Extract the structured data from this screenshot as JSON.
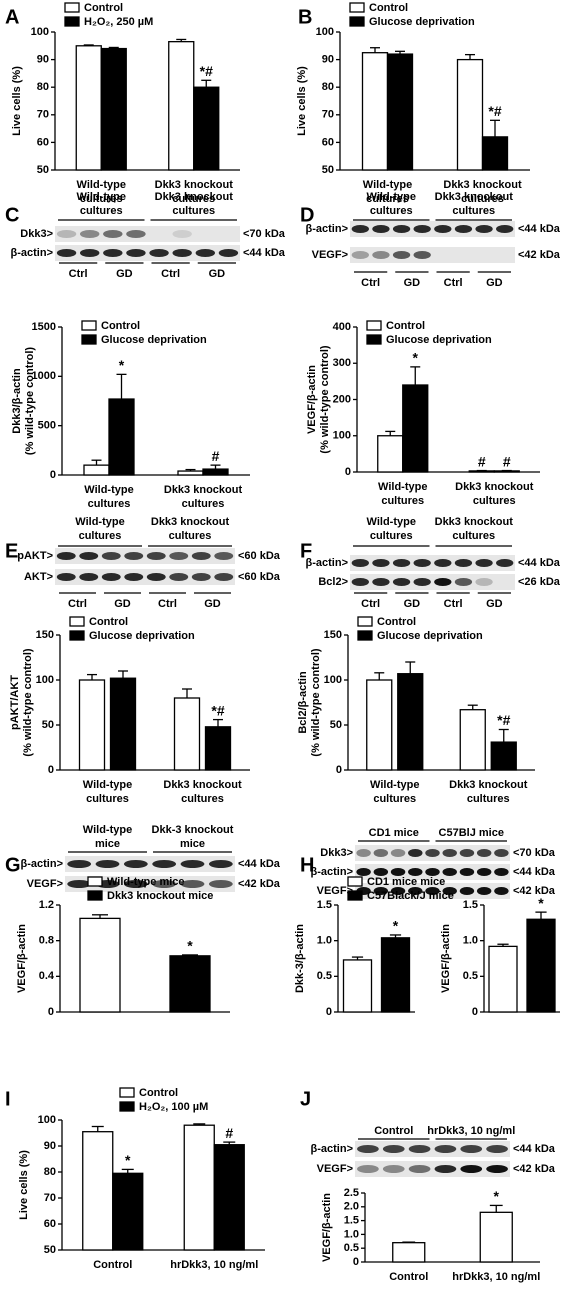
{
  "panels": [
    "A",
    "B",
    "C",
    "D",
    "E",
    "F",
    "G",
    "H",
    "I",
    "J"
  ],
  "blots": [
    {
      "groups": [
        [
          "Wild-type",
          "cultures"
        ],
        [
          "Dkk3 knockout",
          "cultures"
        ]
      ],
      "rows": [
        "Dkk3>",
        "β-actin>"
      ],
      "sizes": [
        "<70 kDa",
        "<44 kDa"
      ],
      "lanes": [
        "Ctrl",
        "GD",
        "Ctrl",
        "GD"
      ]
    },
    {
      "groups": [
        [
          "Wild-type",
          "cultures"
        ],
        [
          "Dkk3 knockout",
          "cultures"
        ]
      ],
      "rows": [
        "β-actin>",
        "VEGF>"
      ],
      "sizes": [
        "<44 kDa",
        "<42 kDa"
      ],
      "lanes": [
        "Ctrl",
        "GD",
        "Ctrl",
        "GD"
      ]
    },
    {
      "groups": [
        [
          "Wild-type",
          "cultures"
        ],
        [
          "Dkk3 knockout",
          "cultures"
        ]
      ],
      "rows": [
        "pAKT>",
        "AKT>"
      ],
      "sizes": [
        "<60 kDa",
        "<60 kDa"
      ],
      "lanes": [
        "Ctrl",
        "GD",
        "Ctrl",
        "GD"
      ]
    },
    {
      "groups": [
        [
          "Wild-type",
          "cultures"
        ],
        [
          "Dkk3 knockout",
          "cultures"
        ]
      ],
      "rows": [
        "β-actin>",
        "Bcl2>"
      ],
      "sizes": [
        "<44 kDa",
        "<26 kDa"
      ],
      "lanes": [
        "Ctrl",
        "GD",
        "Ctrl",
        "GD"
      ]
    },
    {
      "groups": [
        [
          "Wild-type",
          "mice"
        ],
        [
          "Dkk-3 knockout",
          "mice"
        ]
      ],
      "rows": [
        "β-actin>",
        "VEGF>"
      ],
      "sizes": [
        "<44 kDa",
        "<42 kDa"
      ],
      "lanes": []
    },
    {
      "groups": [
        [
          "CD1 mice"
        ],
        [
          "C57BlJ mice"
        ]
      ],
      "rows": [
        "Dkk3>",
        "β-actin>",
        "VEGF>"
      ],
      "sizes": [
        "<70 kDa",
        "<44 kDa",
        "<42 kDa"
      ],
      "lanes": []
    },
    {
      "groups": [
        [
          "Control"
        ],
        [
          "hrDkk3, 10 ng/ml"
        ]
      ],
      "rows": [
        "β-actin>",
        "VEGF>"
      ],
      "sizes": [
        "<44 kDa",
        "<42 kDa"
      ],
      "lanes": []
    }
  ],
  "chart_data": [
    {
      "type": "bar",
      "ylabel": [
        "Live cells (%)"
      ],
      "ylim": [
        50,
        100
      ],
      "yticks": [
        50,
        60,
        70,
        80,
        90,
        100
      ],
      "categories": [
        [
          "Wild-type",
          "cultures"
        ],
        [
          "Dkk3 knockout",
          "cultures"
        ]
      ],
      "series": [
        {
          "name": "Control",
          "color": "#ffffff",
          "values": [
            95,
            96.5
          ],
          "errors": [
            0.3,
            0.8
          ],
          "annotations": [
            null,
            null
          ]
        },
        {
          "name": "H₂O₂, 250 µM",
          "color": "#000000",
          "values": [
            94,
            80
          ],
          "errors": [
            0.4,
            2.5
          ],
          "annotations": [
            null,
            "*#"
          ]
        }
      ]
    },
    {
      "type": "bar",
      "ylabel": [
        "Live cells (%)"
      ],
      "ylim": [
        50,
        100
      ],
      "yticks": [
        50,
        60,
        70,
        80,
        90,
        100
      ],
      "categories": [
        [
          "Wild-type",
          "cultures"
        ],
        [
          "Dkk3 knockout",
          "cultures"
        ]
      ],
      "series": [
        {
          "name": "Control",
          "color": "#ffffff",
          "values": [
            92.5,
            90
          ],
          "errors": [
            1.8,
            1.8
          ],
          "annotations": [
            null,
            null
          ]
        },
        {
          "name": "Glucose deprivation",
          "color": "#000000",
          "values": [
            92,
            62
          ],
          "errors": [
            1,
            6
          ],
          "annotations": [
            null,
            "*#"
          ]
        }
      ]
    },
    {
      "type": "bar",
      "ylabel": [
        "Dkk3/β-actin",
        "(% wild-type control)"
      ],
      "ylim": [
        0,
        1500
      ],
      "yticks": [
        0,
        500,
        1000,
        1500
      ],
      "categories": [
        [
          "Wild-type",
          "cultures"
        ],
        [
          "Dkk3 knockout",
          "cultures"
        ]
      ],
      "series": [
        {
          "name": "Control",
          "color": "#ffffff",
          "values": [
            100,
            40
          ],
          "errors": [
            50,
            15
          ],
          "annotations": [
            null,
            null
          ]
        },
        {
          "name": "Glucose deprivation",
          "color": "#000000",
          "values": [
            770,
            60
          ],
          "errors": [
            250,
            40
          ],
          "annotations": [
            "*",
            "#"
          ]
        }
      ]
    },
    {
      "type": "bar",
      "ylabel": [
        "VEGF/β-actin",
        "(% wild-type control)"
      ],
      "ylim": [
        0,
        400
      ],
      "yticks": [
        0,
        100,
        200,
        300,
        400
      ],
      "categories": [
        [
          "Wild-type",
          "cultures"
        ],
        [
          "Dkk3 knockout",
          "cultures"
        ]
      ],
      "series": [
        {
          "name": "Control",
          "color": "#ffffff",
          "values": [
            100,
            3
          ],
          "errors": [
            12,
            1
          ],
          "annotations": [
            null,
            "#"
          ]
        },
        {
          "name": "Glucose deprivation",
          "color": "#000000",
          "values": [
            240,
            3
          ],
          "errors": [
            50,
            1
          ],
          "annotations": [
            "*",
            "#"
          ]
        }
      ]
    },
    {
      "type": "bar",
      "ylabel": [
        "pAKT/AKT",
        "(% wild-type control)"
      ],
      "ylim": [
        0,
        150
      ],
      "yticks": [
        0,
        50,
        100,
        150
      ],
      "categories": [
        [
          "Wild-type",
          "cultures"
        ],
        [
          "Dkk3 knockout",
          "cultures"
        ]
      ],
      "series": [
        {
          "name": "Control",
          "color": "#ffffff",
          "values": [
            100,
            80
          ],
          "errors": [
            6,
            10
          ],
          "annotations": [
            null,
            null
          ]
        },
        {
          "name": "Glucose deprivation",
          "color": "#000000",
          "values": [
            102,
            48
          ],
          "errors": [
            8,
            8
          ],
          "annotations": [
            null,
            "*#"
          ]
        }
      ]
    },
    {
      "type": "bar",
      "ylabel": [
        "Bcl2/β-actin",
        "(% wild-type control)"
      ],
      "ylim": [
        0,
        150
      ],
      "yticks": [
        0,
        50,
        100,
        150
      ],
      "categories": [
        [
          "Wild-type",
          "cultures"
        ],
        [
          "Dkk3 knockout",
          "cultures"
        ]
      ],
      "series": [
        {
          "name": "Control",
          "color": "#ffffff",
          "values": [
            100,
            67
          ],
          "errors": [
            8,
            5
          ],
          "annotations": [
            null,
            null
          ]
        },
        {
          "name": "Glucose deprivation",
          "color": "#000000",
          "values": [
            107,
            31
          ],
          "errors": [
            13,
            14
          ],
          "annotations": [
            null,
            "*#"
          ]
        }
      ]
    },
    {
      "type": "bar",
      "ylabel": [
        "VEGF/β-actin"
      ],
      "ylim": [
        0,
        1.2
      ],
      "yticks": [
        0,
        0.4,
        0.8,
        1.2
      ],
      "series": [
        {
          "name": "Wild-type mice",
          "color": "#ffffff",
          "values": [
            1.05
          ],
          "errors": [
            0.04
          ],
          "annotations": [
            null
          ]
        },
        {
          "name": "Dkk3 knockout mice",
          "color": "#000000",
          "values": [
            0.63
          ],
          "errors": [
            0.01
          ],
          "annotations": [
            "*"
          ]
        }
      ]
    },
    {
      "type": "bar",
      "ylabel": [
        "Dkk-3/β-actin"
      ],
      "ylim": [
        0,
        1.5
      ],
      "yticks": [
        0,
        0.5,
        {
          "value": 1,
          "label": "1.0"
        },
        1.5
      ],
      "series": [
        {
          "name": "CD1 mice mice",
          "color": "#ffffff",
          "values": [
            0.73
          ],
          "errors": [
            0.04
          ],
          "annotations": [
            null
          ]
        },
        {
          "name": "C57Black/J mice",
          "color": "#000000",
          "values": [
            1.04
          ],
          "errors": [
            0.04
          ],
          "annotations": [
            "*"
          ]
        }
      ]
    },
    {
      "type": "bar",
      "ylabel": [
        "VEGF/β-actin"
      ],
      "ylim": [
        0,
        1.5
      ],
      "yticks": [
        0,
        0.5,
        {
          "value": 1,
          "label": "1.0"
        },
        1.5
      ],
      "series": [
        {
          "color": "#ffffff",
          "values": [
            0.92
          ],
          "errors": [
            0.03
          ],
          "annotations": [
            null
          ]
        },
        {
          "color": "#000000",
          "values": [
            1.3
          ],
          "errors": [
            0.1
          ],
          "annotations": [
            "*"
          ]
        }
      ]
    },
    {
      "type": "bar",
      "ylabel": [
        "Live cells (%)"
      ],
      "ylim": [
        50,
        100
      ],
      "yticks": [
        50,
        60,
        70,
        80,
        90,
        100
      ],
      "categories": [
        [
          "Control"
        ],
        [
          "hrDkk3, 10 ng/ml"
        ]
      ],
      "series": [
        {
          "name": "Control",
          "color": "#ffffff",
          "values": [
            95.5,
            98
          ],
          "errors": [
            2,
            0.5
          ],
          "annotations": [
            null,
            null
          ]
        },
        {
          "name": "H₂O₂, 100 µM",
          "color": "#000000",
          "values": [
            79.5,
            90.5
          ],
          "errors": [
            1.5,
            1
          ],
          "annotations": [
            "*",
            "#"
          ]
        }
      ]
    },
    {
      "type": "bar",
      "ylabel": [
        "VEGF/β-actin"
      ],
      "ylim": [
        0,
        2.5
      ],
      "yticks": [
        0,
        0.5,
        {
          "value": 1,
          "label": "1.0"
        },
        1.5,
        {
          "value": 2,
          "label": "2.0"
        },
        2.5
      ],
      "categories": [
        [
          "Control"
        ],
        [
          "hrDkk3, 10 ng/ml"
        ]
      ],
      "series": [
        {
          "color": "#ffffff",
          "values": [
            0.7,
            1.8
          ],
          "errors": [
            0.02,
            0.25
          ],
          "annotations": [
            null,
            "*"
          ]
        }
      ]
    }
  ]
}
